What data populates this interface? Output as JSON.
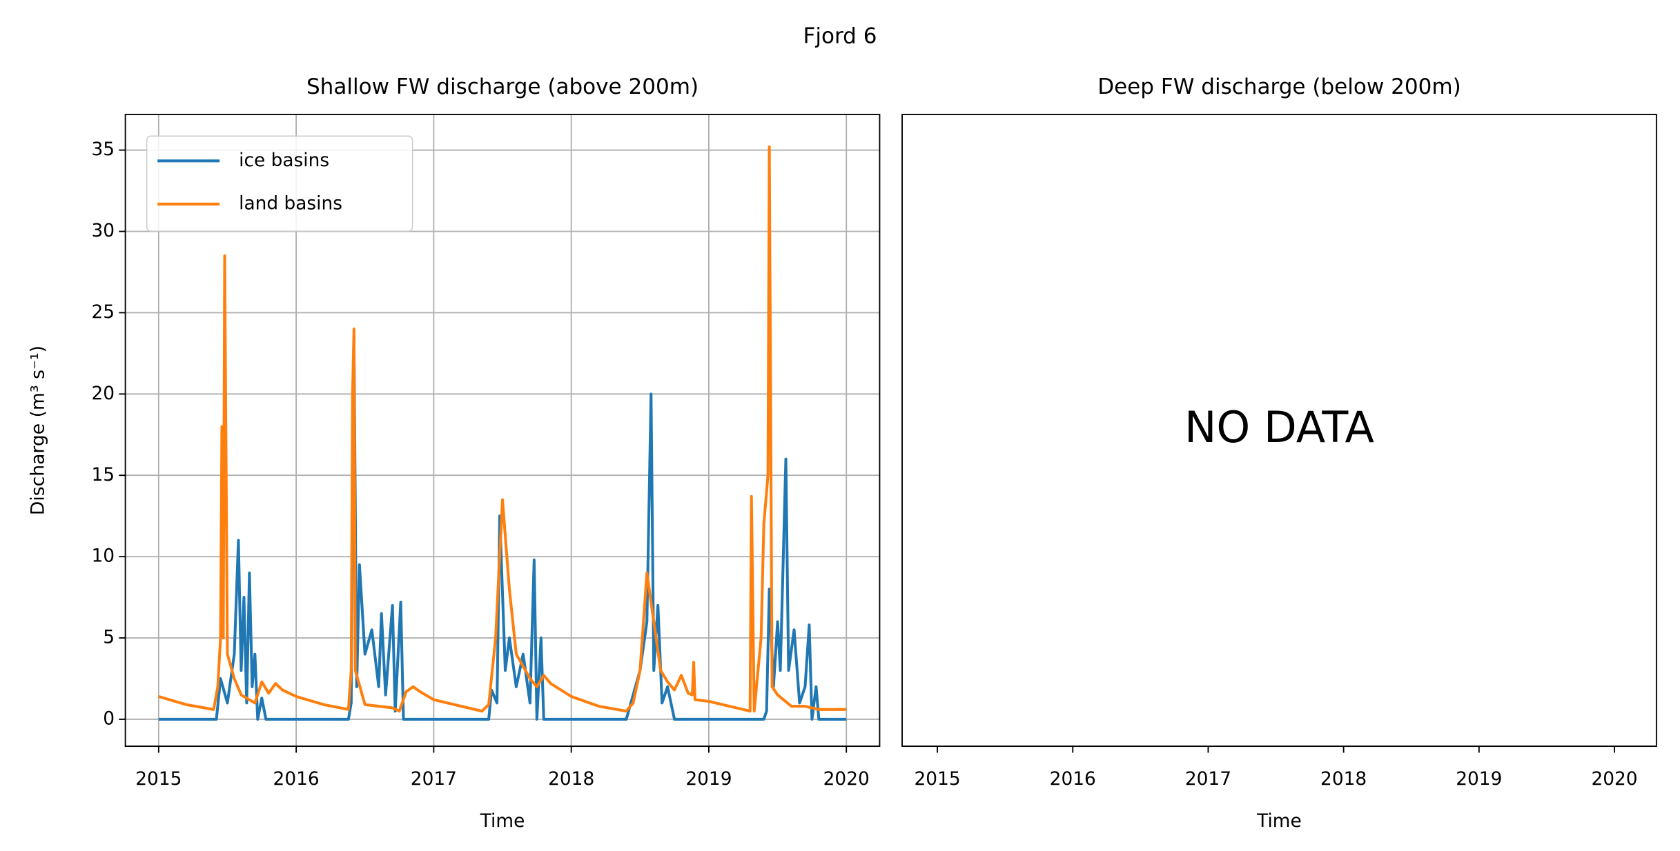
{
  "title": "Fjord 6",
  "chart_data": [
    {
      "type": "line",
      "title": "Shallow FW discharge (above 200m)",
      "xlabel": "Time",
      "ylabel": "Discharge (m³ s⁻¹)",
      "xlim": [
        2014.758,
        2020.242
      ],
      "ylim": [
        -1.66,
        37.19
      ],
      "xticks": [
        2015,
        2016,
        2017,
        2018,
        2019,
        2020
      ],
      "yticks": [
        0,
        5,
        10,
        15,
        20,
        25,
        30,
        35
      ],
      "grid": true,
      "legend": "upper left",
      "series": [
        {
          "name": "ice basins",
          "color": "#1f77b4",
          "x": [
            2015.0,
            2015.42,
            2015.45,
            2015.5,
            2015.55,
            2015.58,
            2015.6,
            2015.62,
            2015.64,
            2015.66,
            2015.68,
            2015.7,
            2015.72,
            2015.75,
            2015.78,
            2016.38,
            2016.4,
            2016.42,
            2016.44,
            2016.46,
            2016.5,
            2016.55,
            2016.6,
            2016.62,
            2016.65,
            2016.7,
            2016.72,
            2016.76,
            2016.78,
            2017.4,
            2017.42,
            2017.46,
            2017.48,
            2017.52,
            2017.55,
            2017.6,
            2017.65,
            2017.7,
            2017.73,
            2017.75,
            2017.78,
            2017.8,
            2018.4,
            2018.45,
            2018.5,
            2018.55,
            2018.58,
            2018.6,
            2018.63,
            2018.66,
            2018.7,
            2018.75,
            2019.4,
            2019.42,
            2019.44,
            2019.47,
            2019.5,
            2019.52,
            2019.56,
            2019.58,
            2019.62,
            2019.66,
            2019.7,
            2019.73,
            2019.75,
            2019.78,
            2019.8,
            2020.0
          ],
          "values": [
            0,
            0,
            2.5,
            1,
            4,
            11,
            3,
            7.5,
            1,
            9,
            2,
            4,
            0,
            1.3,
            0,
            0,
            1,
            23.5,
            2,
            9.5,
            4,
            5.5,
            2,
            6.5,
            1.5,
            7,
            0.5,
            7.2,
            0,
            0,
            1.8,
            1,
            12.5,
            3,
            5,
            2,
            4,
            1,
            9.8,
            0,
            5,
            0,
            0,
            1.5,
            3,
            6,
            20,
            3,
            7,
            1,
            2,
            0,
            0,
            0.5,
            8,
            2,
            6,
            3,
            16,
            3,
            5.5,
            1,
            2,
            5.8,
            0,
            2,
            0,
            0
          ]
        },
        {
          "name": "land basins",
          "color": "#ff7f0e",
          "x": [
            2015.0,
            2015.2,
            2015.4,
            2015.43,
            2015.45,
            2015.46,
            2015.47,
            2015.48,
            2015.5,
            2015.55,
            2015.6,
            2015.7,
            2015.75,
            2015.8,
            2015.85,
            2015.9,
            2016.0,
            2016.2,
            2016.38,
            2016.4,
            2016.41,
            2016.42,
            2016.43,
            2016.5,
            2016.7,
            2016.75,
            2016.8,
            2016.85,
            2016.9,
            2017.0,
            2017.2,
            2017.35,
            2017.4,
            2017.45,
            2017.5,
            2017.55,
            2017.6,
            2017.7,
            2017.75,
            2017.8,
            2017.85,
            2018.0,
            2018.2,
            2018.4,
            2018.45,
            2018.5,
            2018.55,
            2018.6,
            2018.65,
            2018.7,
            2018.75,
            2018.8,
            2018.85,
            2018.88,
            2018.89,
            2018.9,
            2019.0,
            2019.2,
            2019.3,
            2019.31,
            2019.33,
            2019.38,
            2019.4,
            2019.43,
            2019.44,
            2019.46,
            2019.5,
            2019.6,
            2019.7,
            2019.8,
            2020.0
          ],
          "values": [
            1.4,
            0.9,
            0.6,
            2,
            5,
            18,
            5,
            28.5,
            4,
            2.5,
            1.5,
            1.0,
            2.3,
            1.6,
            2.2,
            1.8,
            1.4,
            0.9,
            0.6,
            3,
            20,
            24,
            3,
            0.9,
            0.7,
            0.5,
            1.7,
            2.0,
            1.7,
            1.2,
            0.8,
            0.5,
            0.9,
            5,
            13.5,
            8,
            4,
            2.5,
            2.0,
            2.7,
            2.2,
            1.4,
            0.8,
            0.5,
            1.0,
            3,
            9,
            6,
            3,
            2.3,
            1.8,
            2.7,
            1.6,
            1.5,
            3.5,
            1.2,
            1.1,
            0.7,
            0.5,
            13.7,
            0.5,
            5,
            12,
            15,
            35.2,
            2,
            1.5,
            0.8,
            0.8,
            0.6,
            0.6
          ]
        }
      ]
    },
    {
      "type": "line",
      "title": "Deep FW discharge (below 200m)",
      "xlabel": "Time",
      "xlim": [
        2014.74,
        2020.31
      ],
      "xticks": [
        2015,
        2016,
        2017,
        2018,
        2019,
        2020
      ],
      "grid": false,
      "annotation": "NO DATA",
      "series": []
    }
  ]
}
